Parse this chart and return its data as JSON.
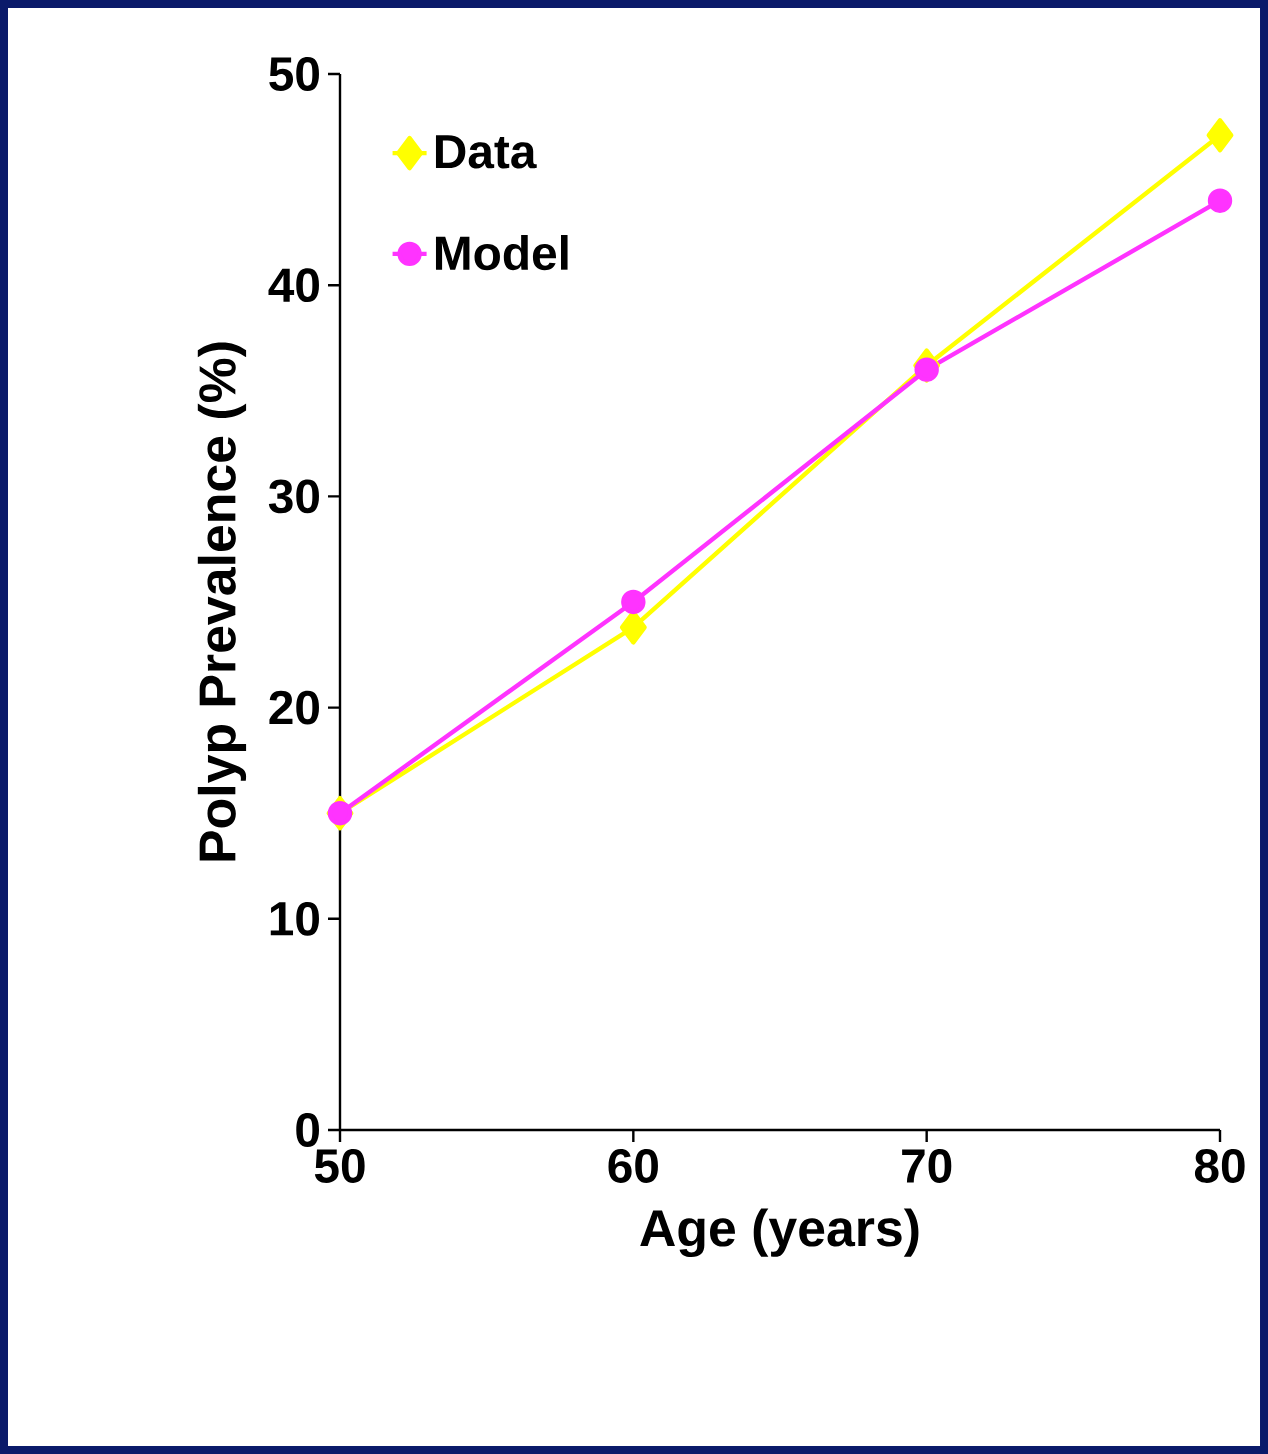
{
  "chart_data": {
    "type": "line",
    "xlabel": "Age (years)",
    "ylabel": "Polyp Prevalence (%)",
    "x": [
      50,
      60,
      70,
      80
    ],
    "series": [
      {
        "name": "Data",
        "color": "#ffff00",
        "values": [
          15,
          23.8,
          36.2,
          47.1
        ],
        "marker": "diamond"
      },
      {
        "name": "Model",
        "color": "#ff33ff",
        "values": [
          15,
          25,
          36,
          44
        ],
        "marker": "circle"
      }
    ],
    "xlim": [
      50,
      80
    ],
    "ylim": [
      0,
      50
    ],
    "xticks": [
      50,
      60,
      70,
      80
    ],
    "yticks": [
      0,
      10,
      20,
      30,
      40,
      50
    ],
    "grid": false,
    "legend": "top left",
    "line_style": "solid"
  }
}
